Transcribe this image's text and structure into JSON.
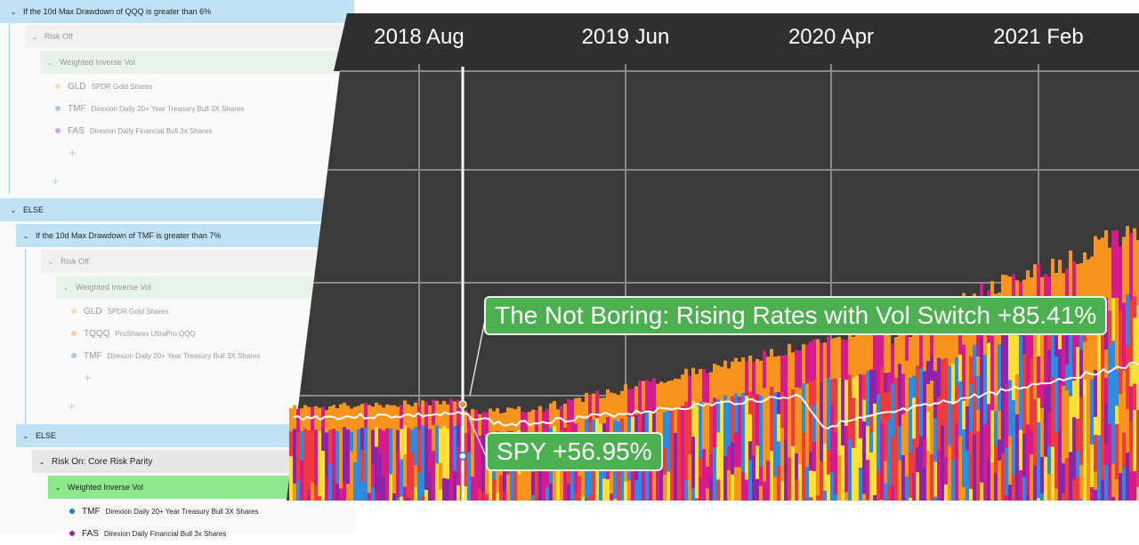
{
  "tree": {
    "cond1": "If the 10d Max Drawdown of QQQ is greater than 6%",
    "riskoff": "Risk Off",
    "wiv": "Weighted Inverse Vol",
    "else": "ELSE",
    "cond2": "If the 10d Max Drawdown of TMF is greater than 7%",
    "riskon": "Risk On: Core Risk Parity",
    "block1": [
      {
        "ticker": "GLD",
        "desc": "SPDR Gold Shares",
        "color": "#f4b860"
      },
      {
        "ticker": "TMF",
        "desc": "Direxion Daily 20+ Year Treasury Bull 3X Shares",
        "color": "#3c8fde"
      },
      {
        "ticker": "FAS",
        "desc": "Direxion Daily Financial Bull 3x Shares",
        "color": "#b03fb8"
      }
    ],
    "block2": [
      {
        "ticker": "GLD",
        "desc": "SPDR Gold Shares",
        "color": "#f4b860"
      },
      {
        "ticker": "TQQQ",
        "desc": "ProShares UltraPro QQQ",
        "color": "#f49a20"
      },
      {
        "ticker": "TMF",
        "desc": "Direxion Daily 20+ Year Treasury Bull 3X Shares",
        "color": "#3c8fde"
      }
    ],
    "block3": [
      {
        "ticker": "TMF",
        "desc": "Direxion Daily 20+ Year Treasury Bull 3X Shares",
        "color": "#1f78d1"
      },
      {
        "ticker": "FAS",
        "desc": "Direxion Daily Financial Bull 3x Shares",
        "color": "#a020a8"
      }
    ]
  },
  "chart": {
    "x_ticks": [
      "2018 Aug",
      "2019 Jun",
      "2020 Apr",
      "2021 Feb"
    ],
    "strategy_label": "The Not Boring: Rising Rates with Vol Switch +85.41%",
    "spy_label": "SPY +56.95%",
    "colors": {
      "bg": "#3a3a3a",
      "grid": "#8a8a8a",
      "green": "#4caf50",
      "orange": "#f7941d",
      "purple": "#8e24aa",
      "blue": "#2b8ce0",
      "red": "#ef3b3b",
      "yellow": "#ffe033",
      "magenta": "#d81b8c",
      "line": "#ffffff"
    }
  }
}
